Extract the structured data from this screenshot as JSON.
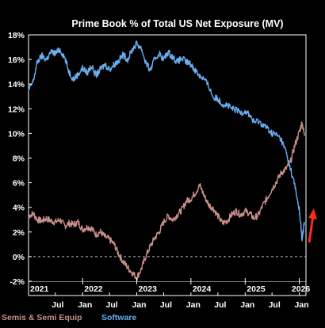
{
  "chart_data": {
    "type": "line",
    "title": "Prime Book % of Total US Net Exposure (MV)",
    "xlabel": "",
    "ylabel": "",
    "x_range": [
      "2021-01-01",
      "2026-02-15"
    ],
    "ylim": [
      -2,
      18
    ],
    "y_ticks": [
      -2,
      0,
      2,
      4,
      6,
      8,
      10,
      12,
      14,
      16,
      18
    ],
    "y_tick_labels": [
      "-2%",
      "0%",
      "2%",
      "4%",
      "6%",
      "8%",
      "10%",
      "12%",
      "14%",
      "16%",
      "18%"
    ],
    "year_ticks": [
      {
        "x": "2021-01-01",
        "label": "2021"
      },
      {
        "x": "2022-01-01",
        "label": "2022"
      },
      {
        "x": "2023-01-01",
        "label": "2023"
      },
      {
        "x": "2024-01-01",
        "label": "2024"
      },
      {
        "x": "2025-01-01",
        "label": "2025"
      },
      {
        "x": "2026-01-01",
        "label": "2026"
      }
    ],
    "month_ticks": [
      {
        "x": "2021-07-01",
        "label": "Jul"
      },
      {
        "x": "2022-01-01",
        "label": "Jan"
      },
      {
        "x": "2022-07-01",
        "label": "Jul"
      },
      {
        "x": "2023-01-01",
        "label": "Jan"
      },
      {
        "x": "2023-07-01",
        "label": "Jul"
      },
      {
        "x": "2024-01-01",
        "label": "Jan"
      },
      {
        "x": "2024-07-01",
        "label": "Jul"
      },
      {
        "x": "2025-01-01",
        "label": "Jan"
      },
      {
        "x": "2025-07-01",
        "label": "Jul"
      },
      {
        "x": "2026-01-01",
        "label": "Jan"
      }
    ],
    "reference_line": {
      "y": 0,
      "style": "dashed"
    },
    "grid": false,
    "legend_position": "bottom-left",
    "annotation": {
      "type": "arrow",
      "direction": "up",
      "color": "#ff2a1a"
    },
    "series": [
      {
        "name": "Semis & Semi Equip",
        "color": "#c9908a",
        "points": [
          [
            "2021-01-01",
            3.3
          ],
          [
            "2021-02-01",
            3.5
          ],
          [
            "2021-03-01",
            3.0
          ],
          [
            "2021-04-01",
            2.9
          ],
          [
            "2021-05-01",
            3.1
          ],
          [
            "2021-06-01",
            2.9
          ],
          [
            "2021-07-01",
            2.8
          ],
          [
            "2021-08-01",
            3.0
          ],
          [
            "2021-09-01",
            2.5
          ],
          [
            "2021-10-01",
            2.7
          ],
          [
            "2021-11-01",
            2.6
          ],
          [
            "2021-12-01",
            2.8
          ],
          [
            "2022-01-01",
            2.2
          ],
          [
            "2022-02-01",
            2.4
          ],
          [
            "2022-03-01",
            2.3
          ],
          [
            "2022-04-01",
            1.8
          ],
          [
            "2022-05-01",
            2.0
          ],
          [
            "2022-06-01",
            1.6
          ],
          [
            "2022-07-01",
            1.4
          ],
          [
            "2022-08-01",
            1.0
          ],
          [
            "2022-09-01",
            0.2
          ],
          [
            "2022-10-01",
            -0.4
          ],
          [
            "2022-11-01",
            -0.9
          ],
          [
            "2022-12-01",
            -1.3
          ],
          [
            "2023-01-01",
            -1.7
          ],
          [
            "2023-02-01",
            -1.0
          ],
          [
            "2023-03-01",
            0.0
          ],
          [
            "2023-04-01",
            0.8
          ],
          [
            "2023-05-01",
            1.5
          ],
          [
            "2023-06-01",
            2.0
          ],
          [
            "2023-07-01",
            2.8
          ],
          [
            "2023-08-01",
            3.3
          ],
          [
            "2023-09-01",
            3.0
          ],
          [
            "2023-10-01",
            3.4
          ],
          [
            "2023-11-01",
            3.8
          ],
          [
            "2023-12-01",
            4.5
          ],
          [
            "2024-01-01",
            4.7
          ],
          [
            "2024-02-01",
            5.2
          ],
          [
            "2024-03-01",
            5.8
          ],
          [
            "2024-04-01",
            4.9
          ],
          [
            "2024-05-01",
            4.2
          ],
          [
            "2024-06-01",
            3.9
          ],
          [
            "2024-07-01",
            3.3
          ],
          [
            "2024-08-01",
            2.7
          ],
          [
            "2024-09-01",
            2.9
          ],
          [
            "2024-10-01",
            3.4
          ],
          [
            "2024-11-01",
            3.7
          ],
          [
            "2024-12-01",
            3.4
          ],
          [
            "2025-01-01",
            3.7
          ],
          [
            "2025-02-01",
            3.5
          ],
          [
            "2025-03-01",
            3.1
          ],
          [
            "2025-04-01",
            3.4
          ],
          [
            "2025-05-01",
            4.2
          ],
          [
            "2025-06-01",
            4.8
          ],
          [
            "2025-07-01",
            5.5
          ],
          [
            "2025-08-01",
            6.1
          ],
          [
            "2025-09-01",
            6.8
          ],
          [
            "2025-10-01",
            7.1
          ],
          [
            "2025-11-01",
            7.6
          ],
          [
            "2025-12-01",
            9.0
          ],
          [
            "2026-01-01",
            10.1
          ],
          [
            "2026-01-20",
            10.9
          ],
          [
            "2026-02-05",
            9.8
          ]
        ]
      },
      {
        "name": "Software",
        "color": "#6aaef0",
        "points": [
          [
            "2021-01-01",
            13.5
          ],
          [
            "2021-02-01",
            14.2
          ],
          [
            "2021-03-01",
            15.8
          ],
          [
            "2021-04-01",
            16.3
          ],
          [
            "2021-05-01",
            16.0
          ],
          [
            "2021-06-01",
            16.6
          ],
          [
            "2021-07-01",
            16.5
          ],
          [
            "2021-08-01",
            16.8
          ],
          [
            "2021-09-01",
            16.2
          ],
          [
            "2021-10-01",
            15.0
          ],
          [
            "2021-11-01",
            14.4
          ],
          [
            "2021-12-01",
            14.8
          ],
          [
            "2022-01-01",
            15.3
          ],
          [
            "2022-02-01",
            14.9
          ],
          [
            "2022-03-01",
            15.5
          ],
          [
            "2022-04-01",
            14.7
          ],
          [
            "2022-05-01",
            15.2
          ],
          [
            "2022-06-01",
            15.6
          ],
          [
            "2022-07-01",
            15.2
          ],
          [
            "2022-08-01",
            15.6
          ],
          [
            "2022-09-01",
            15.9
          ],
          [
            "2022-10-01",
            16.4
          ],
          [
            "2022-11-01",
            16.0
          ],
          [
            "2022-12-01",
            16.8
          ],
          [
            "2023-01-01",
            17.3
          ],
          [
            "2023-02-01",
            16.9
          ],
          [
            "2023-03-01",
            15.8
          ],
          [
            "2023-04-01",
            15.1
          ],
          [
            "2023-05-01",
            16.0
          ],
          [
            "2023-06-01",
            16.5
          ],
          [
            "2023-07-01",
            16.0
          ],
          [
            "2023-08-01",
            16.6
          ],
          [
            "2023-09-01",
            16.2
          ],
          [
            "2023-10-01",
            15.8
          ],
          [
            "2023-11-01",
            16.1
          ],
          [
            "2023-12-01",
            15.8
          ],
          [
            "2024-01-01",
            15.6
          ],
          [
            "2024-02-01",
            15.1
          ],
          [
            "2024-03-01",
            14.7
          ],
          [
            "2024-04-01",
            14.4
          ],
          [
            "2024-05-01",
            13.8
          ],
          [
            "2024-06-01",
            12.9
          ],
          [
            "2024-07-01",
            12.8
          ],
          [
            "2024-08-01",
            12.4
          ],
          [
            "2024-09-01",
            12.3
          ],
          [
            "2024-10-01",
            12.0
          ],
          [
            "2024-11-01",
            11.9
          ],
          [
            "2024-12-01",
            11.7
          ],
          [
            "2025-01-01",
            11.8
          ],
          [
            "2025-02-01",
            11.5
          ],
          [
            "2025-03-01",
            10.9
          ],
          [
            "2025-04-01",
            11.0
          ],
          [
            "2025-05-01",
            10.7
          ],
          [
            "2025-06-01",
            10.4
          ],
          [
            "2025-07-01",
            10.0
          ],
          [
            "2025-08-01",
            9.9
          ],
          [
            "2025-09-01",
            9.5
          ],
          [
            "2025-10-01",
            8.6
          ],
          [
            "2025-11-01",
            7.2
          ],
          [
            "2025-12-01",
            5.8
          ],
          [
            "2026-01-01",
            3.8
          ],
          [
            "2026-01-20",
            1.4
          ],
          [
            "2026-02-05",
            2.8
          ]
        ]
      }
    ]
  }
}
